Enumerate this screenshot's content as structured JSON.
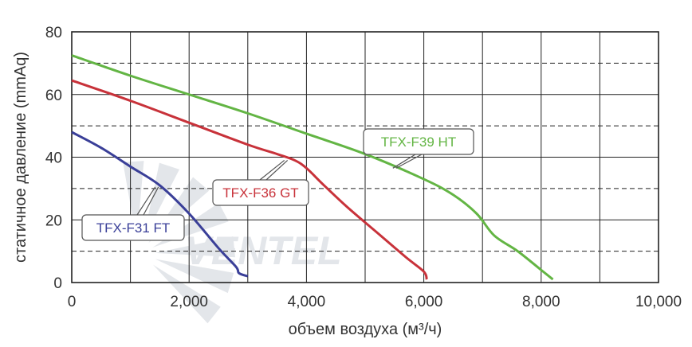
{
  "chart_data": {
    "type": "line",
    "title": "",
    "xlabel": "объем воздуха (м³/ч)",
    "ylabel": "статичное давление (mmAq)",
    "xlim": [
      0,
      10000
    ],
    "ylim": [
      0,
      80
    ],
    "x_ticks": [
      0,
      1000,
      2000,
      3000,
      4000,
      5000,
      6000,
      7000,
      8000,
      9000,
      10000
    ],
    "x_tick_labels": [
      "0",
      "",
      "2,000",
      "",
      "4,000",
      "",
      "6,000",
      "",
      "8,000",
      "",
      "10,000"
    ],
    "y_ticks": [
      0,
      10,
      20,
      30,
      40,
      50,
      60,
      70,
      80
    ],
    "y_tick_labels": [
      "0",
      "",
      "20",
      "",
      "40",
      "",
      "60",
      "",
      "80"
    ],
    "grid": {
      "vertical": "solid",
      "horizontal_major": "solid",
      "horizontal_minor": "dashed"
    },
    "watermark": "VENTEL",
    "series": [
      {
        "name": "TFX-F31 FT",
        "color": "#3a3f98",
        "points": [
          [
            0,
            48
          ],
          [
            500,
            43
          ],
          [
            1000,
            37
          ],
          [
            1500,
            31
          ],
          [
            2000,
            22
          ],
          [
            2500,
            11
          ],
          [
            2800,
            5
          ],
          [
            2850,
            3
          ],
          [
            3000,
            2
          ]
        ],
        "label_anchor": [
          1450,
          31
        ]
      },
      {
        "name": "TFX-F36 GT",
        "color": "#c8323a",
        "points": [
          [
            0,
            64.5
          ],
          [
            1000,
            58
          ],
          [
            2000,
            51
          ],
          [
            3000,
            44
          ],
          [
            3500,
            41
          ],
          [
            3800,
            39
          ],
          [
            4000,
            36.5
          ],
          [
            4300,
            31
          ],
          [
            4700,
            24
          ],
          [
            5200,
            16
          ],
          [
            5700,
            8
          ],
          [
            6000,
            3.5
          ],
          [
            6050,
            1
          ]
        ],
        "label_anchor": [
          3650,
          39.5
        ]
      },
      {
        "name": "TFX-F39 HT",
        "color": "#63b544",
        "points": [
          [
            0,
            72.5
          ],
          [
            1000,
            66
          ],
          [
            2000,
            60
          ],
          [
            3000,
            54
          ],
          [
            4000,
            47.5
          ],
          [
            5000,
            41
          ],
          [
            6000,
            33
          ],
          [
            6500,
            28
          ],
          [
            6900,
            22
          ],
          [
            7200,
            15
          ],
          [
            7600,
            10
          ],
          [
            8000,
            4
          ],
          [
            8200,
            1
          ]
        ],
        "label_anchor": [
          5500,
          37
        ]
      }
    ]
  }
}
